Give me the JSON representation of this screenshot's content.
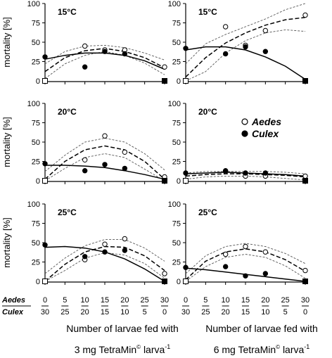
{
  "shared": {
    "ylabel": "mortality [%]",
    "y_ticks": [
      "0",
      "25",
      "50",
      "75",
      "100"
    ],
    "x_row_labels": [
      "Aedes",
      "Culex"
    ],
    "aedes_counts": [
      "0",
      "5",
      "10",
      "15",
      "20",
      "25",
      "30"
    ],
    "culex_counts": [
      "30",
      "25",
      "20",
      "15",
      "10",
      "5",
      "0"
    ],
    "legend": [
      {
        "name": "Aedes",
        "marker": "open-circle"
      },
      {
        "name": "Culex",
        "marker": "filled-circle"
      }
    ],
    "colors": {
      "axis": "#000000",
      "fit_aedes": "#000000",
      "fit_culex": "#000000",
      "ci": "#555555"
    }
  },
  "xlabels": {
    "left_line1": "Number of larvae fed with",
    "left_line2_pre": "3 mg TetraMin",
    "right_line1": "Number of larvae fed with",
    "right_line2_pre": "6 mg TetraMin",
    "copyright_sym": "©",
    "unit": "larva",
    "exponent": "-1"
  },
  "chart_data": [
    {
      "type": "scatter",
      "panel": "left-top",
      "temp_label": "15°C",
      "ylim": [
        0,
        100
      ],
      "xlim": [
        0,
        30
      ],
      "series": [
        {
          "name": "Aedes",
          "x": [
            0,
            10,
            15,
            20,
            30
          ],
          "y": [
            0,
            45,
            40,
            40,
            18
          ],
          "fit": {
            "kind": "quadratic-dashed",
            "x": [
              0,
              5,
              10,
              15,
              20,
              25,
              30
            ],
            "y": [
              12,
              30,
              39,
              42,
              38,
              30,
              17
            ]
          },
          "ci": {
            "upper": [
              22,
              38,
              45,
              46,
              43,
              36,
              27
            ],
            "lower": [
              3,
              22,
              33,
              38,
              33,
              23,
              8
            ]
          }
        },
        {
          "name": "Culex",
          "x": [
            0,
            10,
            15,
            20,
            30
          ],
          "y": [
            31,
            18,
            38,
            35,
            0
          ],
          "fit": {
            "kind": "quadratic-solid",
            "x": [
              0,
              5,
              10,
              15,
              20,
              25,
              30
            ],
            "y": [
              28,
              33,
              36,
              36,
              33,
              26,
              15
            ]
          }
        }
      ]
    },
    {
      "type": "scatter",
      "panel": "right-top",
      "temp_label": "15°C",
      "ylim": [
        0,
        100
      ],
      "xlim": [
        0,
        30
      ],
      "series": [
        {
          "name": "Aedes",
          "x": [
            0,
            10,
            15,
            20,
            30
          ],
          "y": [
            0,
            70,
            46,
            65,
            85
          ],
          "fit": {
            "kind": "quadratic-dashed",
            "x": [
              0,
              5,
              10,
              15,
              20,
              25,
              30
            ],
            "y": [
              5,
              30,
              49,
              62,
              72,
              79,
              82
            ]
          },
          "ci": {
            "upper": [
              22,
              48,
              60,
              70,
              80,
              92,
              100
            ],
            "lower": [
              0,
              12,
              36,
              52,
              62,
              66,
              64
            ]
          }
        },
        {
          "name": "Culex",
          "x": [
            0,
            10,
            15,
            20,
            30
          ],
          "y": [
            42,
            35,
            44,
            38,
            0
          ],
          "fit": {
            "kind": "quadratic-solid",
            "x": [
              0,
              5,
              10,
              15,
              20,
              25,
              30
            ],
            "y": [
              40,
              44,
              44,
              40,
              31,
              19,
              2
            ]
          }
        }
      ]
    },
    {
      "type": "scatter",
      "panel": "left-mid",
      "temp_label": "20°C",
      "ylim": [
        0,
        100
      ],
      "xlim": [
        0,
        30
      ],
      "series": [
        {
          "name": "Aedes",
          "x": [
            0,
            10,
            15,
            20,
            30
          ],
          "y": [
            0,
            27,
            58,
            37,
            5
          ],
          "fit": {
            "kind": "quadratic-dashed",
            "x": [
              0,
              5,
              10,
              15,
              20,
              25,
              30
            ],
            "y": [
              2,
              25,
              40,
              45,
              40,
              25,
              2
            ]
          },
          "ci": {
            "upper": [
              12,
              33,
              50,
              55,
              50,
              35,
              14
            ],
            "lower": [
              0,
              16,
              30,
              35,
              30,
              15,
              0
            ]
          }
        },
        {
          "name": "Culex",
          "x": [
            0,
            10,
            15,
            20,
            30
          ],
          "y": [
            22,
            13,
            21,
            16,
            0
          ],
          "fit": {
            "kind": "quadratic-solid",
            "x": [
              0,
              5,
              10,
              15,
              20,
              25,
              30
            ],
            "y": [
              20,
              20,
              19,
              17,
              13,
              8,
              2
            ]
          }
        }
      ]
    },
    {
      "type": "scatter",
      "panel": "right-mid",
      "temp_label": "20°C",
      "ylim": [
        0,
        100
      ],
      "xlim": [
        0,
        30
      ],
      "series": [
        {
          "name": "Aedes",
          "x": [
            0,
            10,
            15,
            20,
            30
          ],
          "y": [
            0,
            12,
            6,
            6,
            6
          ],
          "fit": {
            "kind": "quadratic-dashed",
            "x": [
              0,
              5,
              10,
              15,
              20,
              25,
              30
            ],
            "y": [
              6,
              8,
              9,
              9,
              8,
              7,
              5
            ]
          },
          "ci": {
            "upper": [
              10,
              12,
              12,
              12,
              12,
              11,
              9
            ],
            "lower": [
              2,
              5,
              6,
              6,
              5,
              3,
              1
            ]
          }
        },
        {
          "name": "Culex",
          "x": [
            0,
            10,
            15,
            20,
            30
          ],
          "y": [
            10,
            13,
            10,
            10,
            0
          ],
          "fit": {
            "kind": "quadratic-solid",
            "x": [
              0,
              5,
              10,
              15,
              20,
              25,
              30
            ],
            "y": [
              9,
              10,
              11,
              10,
              9,
              8,
              6
            ]
          }
        }
      ]
    },
    {
      "type": "scatter",
      "panel": "left-bottom",
      "temp_label": "25°C",
      "ylim": [
        0,
        100
      ],
      "xlim": [
        0,
        30
      ],
      "series": [
        {
          "name": "Aedes",
          "x": [
            0,
            10,
            15,
            20,
            30
          ],
          "y": [
            0,
            28,
            48,
            55,
            10
          ],
          "fit": {
            "kind": "quadratic-dashed",
            "x": [
              0,
              5,
              10,
              15,
              20,
              25,
              30
            ],
            "y": [
              0,
              22,
              38,
              45,
              44,
              33,
              14
            ]
          },
          "ci": {
            "upper": [
              10,
              30,
              46,
              54,
              54,
              43,
              26
            ],
            "lower": [
              0,
              14,
              30,
              37,
              34,
              23,
              4
            ]
          }
        },
        {
          "name": "Culex",
          "x": [
            0,
            10,
            15,
            20,
            30
          ],
          "y": [
            47,
            32,
            38,
            40,
            0
          ],
          "fit": {
            "kind": "quadratic-solid",
            "x": [
              0,
              5,
              10,
              15,
              20,
              25,
              30
            ],
            "y": [
              44,
              45,
              43,
              38,
              29,
              16,
              0
            ]
          }
        }
      ]
    },
    {
      "type": "scatter",
      "panel": "right-bottom",
      "temp_label": "25°C",
      "ylim": [
        0,
        100
      ],
      "xlim": [
        0,
        30
      ],
      "series": [
        {
          "name": "Aedes",
          "x": [
            0,
            10,
            15,
            20,
            30
          ],
          "y": [
            0,
            35,
            45,
            38,
            14
          ],
          "fit": {
            "kind": "quadratic-dashed",
            "x": [
              0,
              5,
              10,
              15,
              20,
              25,
              30
            ],
            "y": [
              2,
              26,
              38,
              42,
              38,
              28,
              13
            ]
          },
          "ci": {
            "upper": [
              10,
              33,
              45,
              49,
              45,
              36,
              23
            ],
            "lower": [
              0,
              19,
              31,
              35,
              31,
              20,
              4
            ]
          }
        },
        {
          "name": "Culex",
          "x": [
            0,
            10,
            15,
            20,
            30
          ],
          "y": [
            18,
            19,
            7,
            10,
            0
          ],
          "fit": {
            "kind": "quadratic-solid",
            "x": [
              0,
              5,
              10,
              15,
              20,
              25,
              30
            ],
            "y": [
              17,
              15,
              12,
              9,
              6,
              3,
              0
            ]
          }
        }
      ]
    }
  ]
}
